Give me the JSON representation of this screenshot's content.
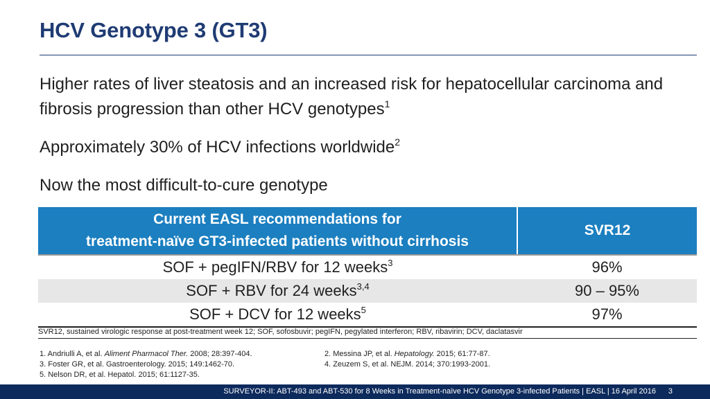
{
  "slide": {
    "title": "HCV Genotype 3 (GT3)",
    "bullets": [
      {
        "text": "Higher rates of liver steatosis and an increased risk for hepatocellular carcinoma and fibrosis progression than other HCV genotypes",
        "sup": "1"
      },
      {
        "text": "Approximately 30% of HCV infections worldwide",
        "sup": "2"
      },
      {
        "text": "Now the most difficult-to-cure genotype",
        "sup": ""
      }
    ]
  },
  "table": {
    "header": {
      "col1_line1": "Current EASL recommendations for",
      "col1_line2": "treatment-naïve GT3-infected patients without cirrhosis",
      "col2": "SVR12"
    },
    "rows": [
      {
        "regimen": "SOF + pegIFN/RBV for 12 weeks",
        "sup": "3",
        "svr12": "96%"
      },
      {
        "regimen": "SOF + RBV for 24 weeks",
        "sup": "3,4",
        "svr12": "90 – 95%"
      },
      {
        "regimen": "SOF + DCV for 12 weeks",
        "sup": "5",
        "svr12": "97%"
      }
    ],
    "header_color": "#1b7fc0"
  },
  "abbreviations": "SVR12, sustained virologic response at post-treatment week 12; SOF, sofosbuvir; pegIFN, pegylated interferon; RBV, ribavirin; DCV, daclatasvir",
  "references": [
    {
      "pre": "1. Andriulli A, et al. ",
      "journal": "Aliment Pharmacol Ther.",
      "post": " 2008; 28:397-404."
    },
    {
      "pre": "2. Messina JP, et al. ",
      "journal": "Hepatology.",
      "post": " 2015; 61:77-87."
    },
    {
      "pre": "3. Foster GR, et al. Gastroenterology. 2015; 149:1462-70.",
      "journal": "",
      "post": ""
    },
    {
      "pre": "4. Zeuzem S, et al. NEJM. 2014; 370:1993-2001.",
      "journal": "",
      "post": ""
    },
    {
      "pre": "5. Nelson DR, et al. Hepatol. 2015; 61:1127-35.",
      "journal": "",
      "post": ""
    }
  ],
  "footer": {
    "text": "SURVEYOR-II: ABT-493 and ABT-530 for 8 Weeks in Treatment-naïve HCV Genotype 3-infected Patients  | EASL | 16 April 2016",
    "page": "3",
    "color": "#0d2a5c"
  },
  "colors": {
    "title": "#1f3b73",
    "row_shade": "#e7e7e7"
  }
}
